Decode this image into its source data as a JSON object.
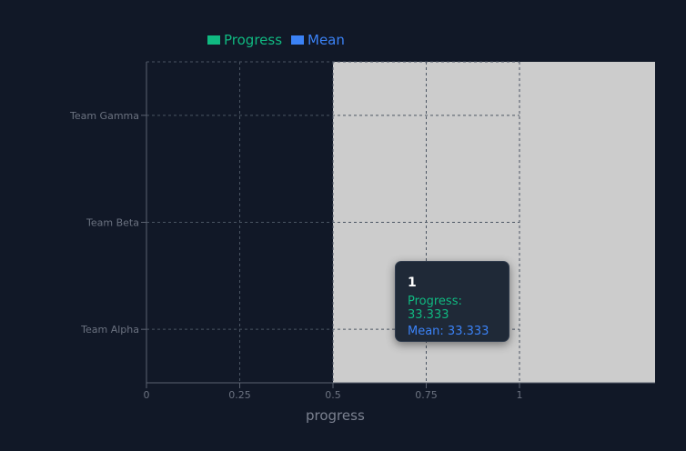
{
  "chart_data": {
    "type": "bar",
    "orientation": "horizontal",
    "categories": [
      "Team Gamma",
      "Team Beta",
      "Team Alpha"
    ],
    "series": [
      {
        "name": "Progress",
        "color": "#10b981"
      },
      {
        "name": "Mean",
        "color": "#3b82f6"
      }
    ],
    "xlabel": "progress",
    "xlim": [
      0,
      1
    ],
    "xticks": [
      "0",
      "0.25",
      "0.5",
      "0.75",
      "1"
    ],
    "grid": true,
    "legend_position": "top",
    "highlight_band": [
      0.5,
      1
    ],
    "highlight_color": "#cccccc"
  },
  "tooltip": {
    "title": "1",
    "progress_label": "Progress: 33.333",
    "mean_label": "Mean: 33.333"
  },
  "colors": {
    "background": "#111827",
    "axis": "#5b6270",
    "grid": "#4b5563",
    "tick_text": "#6b7280"
  }
}
